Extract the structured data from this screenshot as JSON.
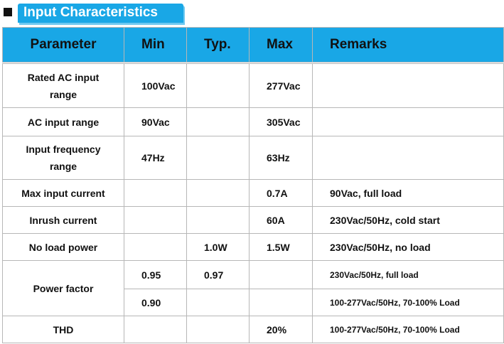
{
  "section": {
    "title": "Input Characteristics",
    "bullet_icon": "square-bullet-icon",
    "accent_color": "#19a7e6"
  },
  "table": {
    "headers": {
      "parameter": "Parameter",
      "min": "Min",
      "typ": "Typ.",
      "max": "Max",
      "remarks": "Remarks"
    },
    "rows": [
      {
        "param": "Rated AC input range",
        "param_l1": "Rated AC input",
        "param_l2": "range",
        "min": "100Vac",
        "typ": "",
        "max": "277Vac",
        "remarks": ""
      },
      {
        "param": "AC input range",
        "min": "90Vac",
        "typ": "",
        "max": "305Vac",
        "remarks": ""
      },
      {
        "param": "Input frequency range",
        "param_l1": "Input frequency",
        "param_l2": "range",
        "min": "47Hz",
        "typ": "",
        "max": "63Hz",
        "remarks": ""
      },
      {
        "param": "Max input current",
        "min": "",
        "typ": "",
        "max": "0.7A",
        "remarks": "90Vac, full load"
      },
      {
        "param": "Inrush current",
        "min": "",
        "typ": "",
        "max": "60A",
        "remarks": "230Vac/50Hz, cold start"
      },
      {
        "param": "No load power",
        "min": "",
        "typ": "1.0W",
        "max": "1.5W",
        "remarks": "230Vac/50Hz, no load"
      },
      {
        "param": "Power factor",
        "min": "0.95",
        "typ": "0.97",
        "max": "",
        "remarks": "230Vac/50Hz, full load"
      },
      {
        "param": "",
        "min": "0.90",
        "typ": "",
        "max": "",
        "remarks": "100-277Vac/50Hz, 70-100% Load"
      },
      {
        "param": "THD",
        "min": "",
        "typ": "",
        "max": "20%",
        "remarks": "100-277Vac/50Hz, 70-100% Load"
      }
    ]
  }
}
